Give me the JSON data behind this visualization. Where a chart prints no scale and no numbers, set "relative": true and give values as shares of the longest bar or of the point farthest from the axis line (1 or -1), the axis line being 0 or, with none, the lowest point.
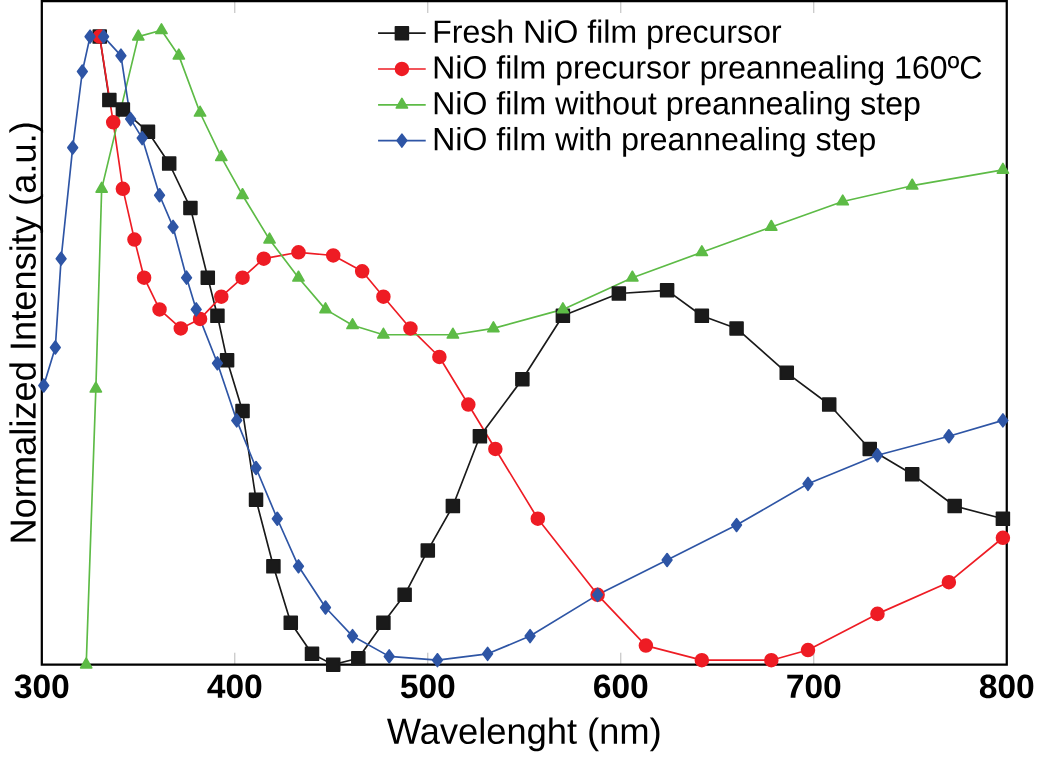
{
  "chart_data": {
    "type": "line",
    "relative": true,
    "xlabel": "Wavelenght (nm)",
    "ylabel": "Normalized Intensity (a.u.)",
    "xlim": [
      300,
      800
    ],
    "xticks": [
      300,
      400,
      500,
      600,
      700,
      800
    ],
    "legend": "top right",
    "grid": false,
    "series": [
      {
        "name": "Fresh NiO film precursor",
        "color": "#1a1a1a",
        "marker": "square",
        "x": [
          330,
          335,
          342,
          355,
          366,
          377,
          386,
          391,
          396,
          404,
          411,
          420,
          429,
          440,
          451,
          464,
          477,
          488,
          500,
          513,
          527,
          549,
          570,
          599,
          624,
          642,
          660,
          686,
          708,
          729,
          751,
          773,
          798
        ],
        "values": [
          0.99,
          0.89,
          0.875,
          0.84,
          0.79,
          0.72,
          0.61,
          0.55,
          0.48,
          0.4,
          0.26,
          0.155,
          0.066,
          0.017,
          0.0,
          0.01,
          0.066,
          0.11,
          0.18,
          0.25,
          0.36,
          0.45,
          0.55,
          0.585,
          0.59,
          0.55,
          0.53,
          0.46,
          0.41,
          0.34,
          0.3,
          0.25,
          0.23
        ]
      },
      {
        "name": "NiO film precursor preannealing 160ºC",
        "color": "#ee1c24",
        "marker": "circle",
        "x": [
          330,
          337,
          342,
          348,
          353,
          361,
          372,
          382,
          393,
          404,
          415,
          433,
          451,
          466,
          477,
          491,
          506,
          521,
          535,
          557,
          588,
          613,
          642,
          678,
          697,
          733,
          770,
          798
        ],
        "values": [
          0.99,
          0.855,
          0.75,
          0.67,
          0.61,
          0.56,
          0.53,
          0.545,
          0.58,
          0.61,
          0.64,
          0.65,
          0.645,
          0.62,
          0.58,
          0.53,
          0.485,
          0.41,
          0.34,
          0.23,
          0.11,
          0.03,
          0.007,
          0.007,
          0.023,
          0.08,
          0.13,
          0.2
        ]
      },
      {
        "name": "NiO film without preannealing step",
        "color": "#5dbb46",
        "marker": "triangle",
        "x": [
          323,
          328,
          331,
          350,
          362,
          371,
          382,
          393,
          404,
          418,
          433,
          447,
          461,
          477,
          513,
          534,
          570,
          606,
          642,
          678,
          715,
          751,
          798
        ],
        "values": [
          0.0,
          0.435,
          0.75,
          0.99,
          1.0,
          0.96,
          0.87,
          0.8,
          0.74,
          0.67,
          0.61,
          0.56,
          0.535,
          0.52,
          0.52,
          0.53,
          0.56,
          0.61,
          0.65,
          0.69,
          0.73,
          0.755,
          0.78
        ]
      },
      {
        "name": "NiO film with preannealing step",
        "color": "#2e55a5",
        "marker": "diamond",
        "x": [
          301,
          307,
          310,
          316,
          321,
          325,
          332,
          341,
          346,
          352,
          361,
          368,
          375,
          380,
          391,
          401,
          411,
          422,
          433,
          447,
          461,
          480,
          505,
          531,
          553,
          588,
          624,
          660,
          697,
          733,
          770,
          798
        ],
        "values": [
          0.44,
          0.5,
          0.64,
          0.815,
          0.935,
          0.99,
          0.99,
          0.96,
          0.86,
          0.83,
          0.74,
          0.69,
          0.61,
          0.56,
          0.475,
          0.385,
          0.31,
          0.23,
          0.155,
          0.09,
          0.045,
          0.013,
          0.007,
          0.017,
          0.045,
          0.11,
          0.165,
          0.22,
          0.285,
          0.33,
          0.36,
          0.385
        ]
      }
    ]
  }
}
